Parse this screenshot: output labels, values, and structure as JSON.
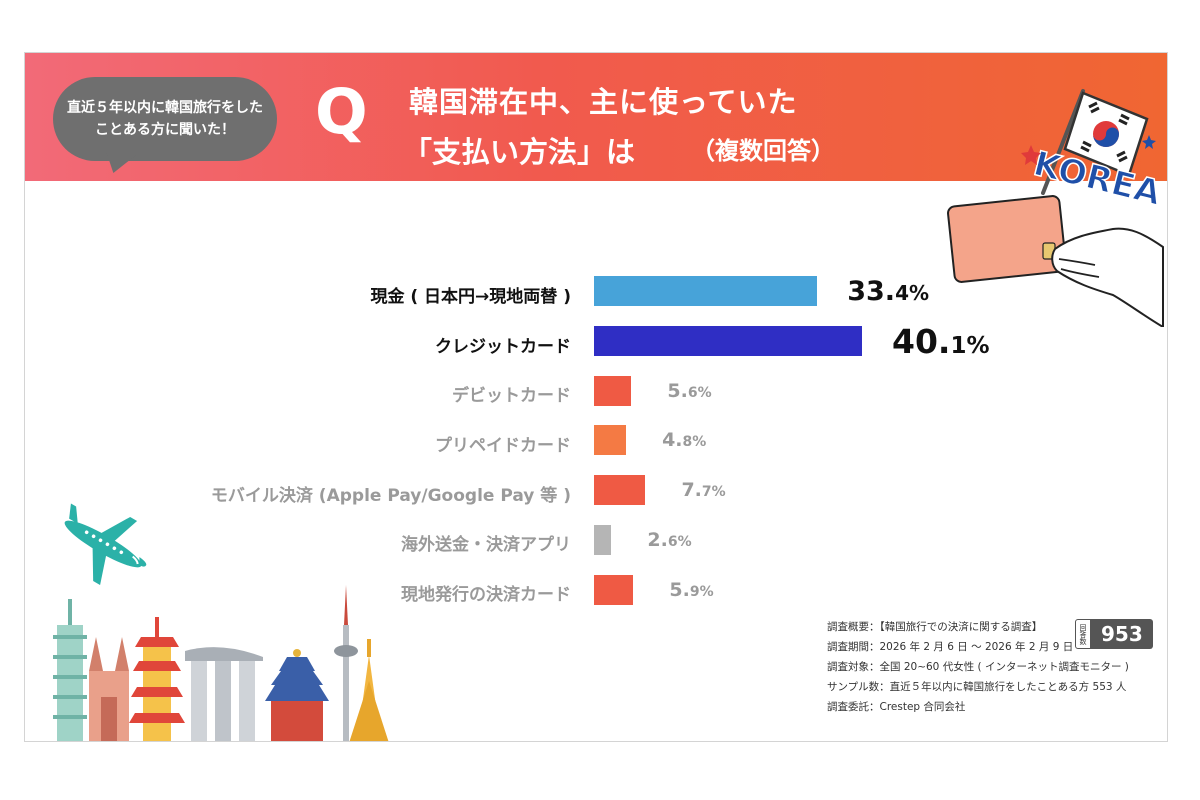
{
  "header": {
    "bubble": "直近５年以内に韓国旅行をしたことある方に聞いた！",
    "q_mark": "Q",
    "question_line1": "韓国滞在中、主に使っていた",
    "question_line2": "「支払い方法」は",
    "question_note": "（複数回答）"
  },
  "chart_data": {
    "type": "bar",
    "orientation": "horizontal",
    "categories": [
      "現金 ( 日本円→現地両替 )",
      "クレジットカード",
      "デビットカード",
      "プリペイドカード",
      "モバイル決済 (Apple Pay/Google Pay 等 )",
      "海外送金・決済アプリ",
      "現地発行の決済カード"
    ],
    "values": [
      33.4,
      40.1,
      5.6,
      4.8,
      7.7,
      2.6,
      5.9
    ],
    "value_labels": [
      {
        "int": "33.",
        "dec": "4%"
      },
      {
        "int": "40.",
        "dec": "1%"
      },
      {
        "int": "5.",
        "dec": "6%"
      },
      {
        "int": "4.",
        "dec": "8%"
      },
      {
        "int": "7.",
        "dec": "7%"
      },
      {
        "int": "2.",
        "dec": "6%"
      },
      {
        "int": "5.",
        "dec": "9%"
      }
    ],
    "unit": "%",
    "colors": [
      "#47a3d9",
      "#2f2ec4",
      "#ef5a44",
      "#f47a44",
      "#ef5a44",
      "#b5b5b5",
      "#ef5a44"
    ],
    "highlighted": [
      0,
      1
    ],
    "title": "",
    "xlabel": "",
    "ylabel": "",
    "xlim": [
      0,
      40.1
    ],
    "grid": false,
    "legend": "none"
  },
  "summary": {
    "overview": "調査概要：【韓国旅行での決済に関する調査】",
    "period": "調査期間：2026 年 2 月 6 日 ～ 2026 年 2 月 9 日",
    "target": "調査対象：全国 20~60 代女性 ( インターネット調査モニター )",
    "sample": "サンプル数：直近５年以内に韓国旅行をしたことある方 553 人",
    "client": "調査委託：Crestep 合同会社",
    "respondents_label": "回答数",
    "respondents_value": "953"
  },
  "illustration": {
    "korea_text": "KOREA",
    "icons": [
      "korea-flag-icon",
      "credit-card-icon",
      "airplane-icon",
      "city-skyline-icon"
    ],
    "colors": {
      "header_start": "#f26a78",
      "header_end": "#f06632",
      "airplane": "#2bb1a8",
      "card": "#f4a48a"
    }
  }
}
